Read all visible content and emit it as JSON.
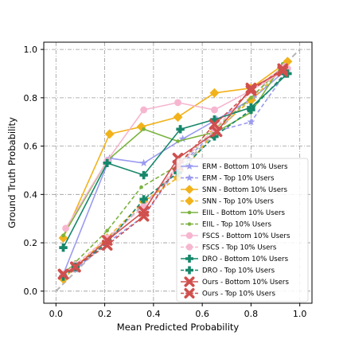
{
  "chart_data": {
    "type": "line",
    "title": "",
    "xlabel": "Mean Predicted Probability",
    "ylabel": "Ground Truth Probability",
    "xlim": [
      -0.05,
      1.05
    ],
    "ylim": [
      -0.05,
      1.03
    ],
    "xticks": [
      "0.0",
      "0.2",
      "0.4",
      "0.6",
      "0.8",
      "1.0"
    ],
    "yticks": [
      "0.0",
      "0.2",
      "0.4",
      "0.6",
      "0.8",
      "1.0"
    ],
    "grid": true,
    "legend_position": "lower-right",
    "reference_line": {
      "x": [
        0,
        1
      ],
      "y": [
        0,
        1
      ],
      "color": "#b5b5b5"
    },
    "series": [
      {
        "name": "ERM - Bottom 10% Users",
        "color": "#9b9bf0",
        "dashed": false,
        "marker": "star",
        "x": [
          0.03,
          0.22,
          0.36,
          0.52,
          0.66,
          0.81,
          0.95
        ],
        "y": [
          0.07,
          0.55,
          0.53,
          0.63,
          0.71,
          0.8,
          0.92
        ]
      },
      {
        "name": "ERM - Top 10% Users",
        "color": "#9b9bf0",
        "dashed": true,
        "marker": "star",
        "x": [
          0.03,
          0.08,
          0.21,
          0.36,
          0.5,
          0.65,
          0.8,
          0.94
        ],
        "y": [
          0.06,
          0.09,
          0.2,
          0.31,
          0.51,
          0.66,
          0.7,
          0.9
        ]
      },
      {
        "name": "SNN - Bottom 10% Users",
        "color": "#f2b21b",
        "dashed": false,
        "marker": "diamond",
        "x": [
          0.03,
          0.22,
          0.35,
          0.5,
          0.65,
          0.8,
          0.95
        ],
        "y": [
          0.22,
          0.65,
          0.68,
          0.72,
          0.82,
          0.84,
          0.95
        ]
      },
      {
        "name": "SNN - Top 10% Users",
        "color": "#f2b21b",
        "dashed": true,
        "marker": "diamond",
        "x": [
          0.03,
          0.08,
          0.21,
          0.36,
          0.5,
          0.65,
          0.8,
          0.94
        ],
        "y": [
          0.05,
          0.1,
          0.22,
          0.37,
          0.47,
          0.66,
          0.79,
          0.93
        ]
      },
      {
        "name": "EIIL - Bottom 10% Users",
        "color": "#7bb33f",
        "dashed": false,
        "marker": "dot",
        "x": [
          0.03,
          0.21,
          0.36,
          0.5,
          0.66,
          0.8,
          0.93
        ],
        "y": [
          0.23,
          0.54,
          0.67,
          0.62,
          0.66,
          0.74,
          0.94
        ]
      },
      {
        "name": "EIIL - Top 10% Users",
        "color": "#7bb33f",
        "dashed": true,
        "marker": "dot",
        "x": [
          0.03,
          0.08,
          0.21,
          0.35,
          0.5,
          0.65,
          0.8,
          0.93
        ],
        "y": [
          0.07,
          0.12,
          0.25,
          0.43,
          0.52,
          0.67,
          0.8,
          0.93
        ]
      },
      {
        "name": "FSCS - Bottom 10% Users",
        "color": "#f7b6cf",
        "dashed": false,
        "marker": "circle",
        "x": [
          0.04,
          0.21,
          0.36,
          0.5,
          0.65,
          0.8,
          0.95
        ],
        "y": [
          0.26,
          0.54,
          0.75,
          0.78,
          0.75,
          0.83,
          0.92
        ]
      },
      {
        "name": "FSCS - Top 10% Users",
        "color": "#f7b6cf",
        "dashed": true,
        "marker": "circle",
        "x": [
          0.03,
          0.08,
          0.21,
          0.36,
          0.5,
          0.65,
          0.8,
          0.94
        ],
        "y": [
          0.07,
          0.11,
          0.22,
          0.35,
          0.52,
          0.67,
          0.83,
          0.93
        ]
      },
      {
        "name": "DRO - Bottom 10% Users",
        "color": "#16876a",
        "dashed": false,
        "marker": "plus",
        "x": [
          0.03,
          0.21,
          0.36,
          0.51,
          0.65,
          0.8,
          0.95
        ],
        "y": [
          0.18,
          0.53,
          0.48,
          0.67,
          0.71,
          0.76,
          0.9
        ]
      },
      {
        "name": "DRO - Top 10% Users",
        "color": "#16876a",
        "dashed": true,
        "marker": "plus",
        "x": [
          0.03,
          0.08,
          0.21,
          0.36,
          0.5,
          0.65,
          0.8,
          0.94
        ],
        "y": [
          0.06,
          0.1,
          0.2,
          0.38,
          0.49,
          0.64,
          0.75,
          0.9
        ]
      },
      {
        "name": "Ours - Bottom 10% Users",
        "color": "#d0504e",
        "dashed": false,
        "marker": "cross",
        "x": [
          0.03,
          0.08,
          0.21,
          0.36,
          0.5,
          0.66,
          0.8,
          0.93
        ],
        "y": [
          0.07,
          0.1,
          0.21,
          0.33,
          0.55,
          0.66,
          0.84,
          0.91
        ]
      },
      {
        "name": "Ours - Top 10% Users",
        "color": "#d0504e",
        "dashed": true,
        "marker": "cross",
        "x": [
          0.03,
          0.08,
          0.21,
          0.36,
          0.5,
          0.65,
          0.8,
          0.93
        ],
        "y": [
          0.07,
          0.1,
          0.19,
          0.31,
          0.52,
          0.69,
          0.83,
          0.92
        ]
      }
    ]
  }
}
